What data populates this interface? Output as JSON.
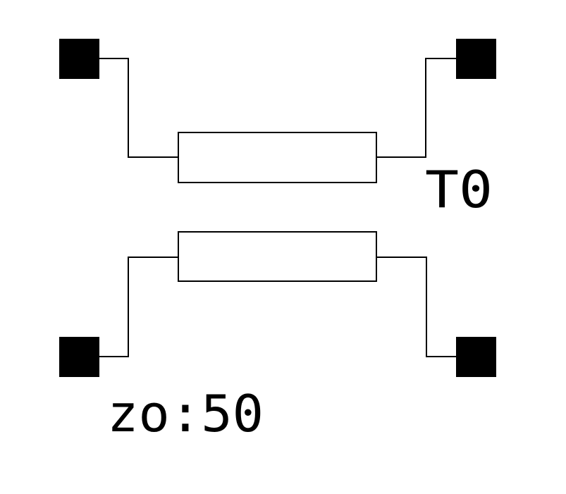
{
  "labels": {
    "name": "T0",
    "impedance": "zo:50"
  }
}
